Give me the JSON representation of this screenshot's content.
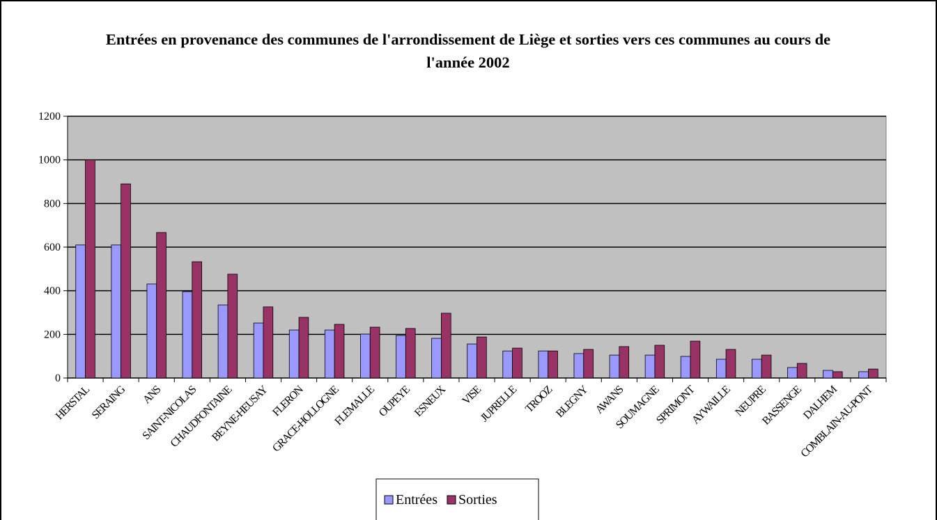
{
  "chart_data": {
    "type": "bar",
    "title": "Entrées en provenance des communes de l'arrondissement de Liège et sorties vers ces communes au cours de l'année 2002",
    "categories": [
      "HERSTAL",
      "SERAING",
      "ANS",
      "SAINT-NICOLAS",
      "CHAUDFONTAINE",
      "BEYNE-HEUSAY",
      "FLERON",
      "GRACE-HOLLOGNE",
      "FLEMALLE",
      "OUPEYE",
      "ESNEUX",
      "VISE",
      "JUPRELLE",
      "TROOZ",
      "BLEGNY",
      "AWANS",
      "SOUMAGNE",
      "SPRIMONT",
      "AYWAILLE",
      "NEUPRE",
      "BASSENGE",
      "DALHEM",
      "COMBLAIN-AU-PONT"
    ],
    "series": [
      {
        "name": "Entrées",
        "color": "#9999ff",
        "values": [
          610,
          610,
          431,
          396,
          335,
          252,
          220,
          220,
          201,
          195,
          182,
          156,
          124,
          124,
          112,
          105,
          105,
          99,
          86,
          86,
          48,
          35,
          29
        ]
      },
      {
        "name": "Sorties",
        "color": "#993366",
        "values": [
          1000,
          890,
          667,
          533,
          476,
          326,
          278,
          246,
          233,
          227,
          297,
          188,
          137,
          124,
          131,
          144,
          150,
          169,
          131,
          105,
          67,
          29,
          41
        ]
      }
    ],
    "ylim": [
      0,
      1200
    ],
    "yticks": [
      0,
      200,
      400,
      600,
      800,
      1000,
      1200
    ],
    "grid": true,
    "legend": "bottom"
  }
}
